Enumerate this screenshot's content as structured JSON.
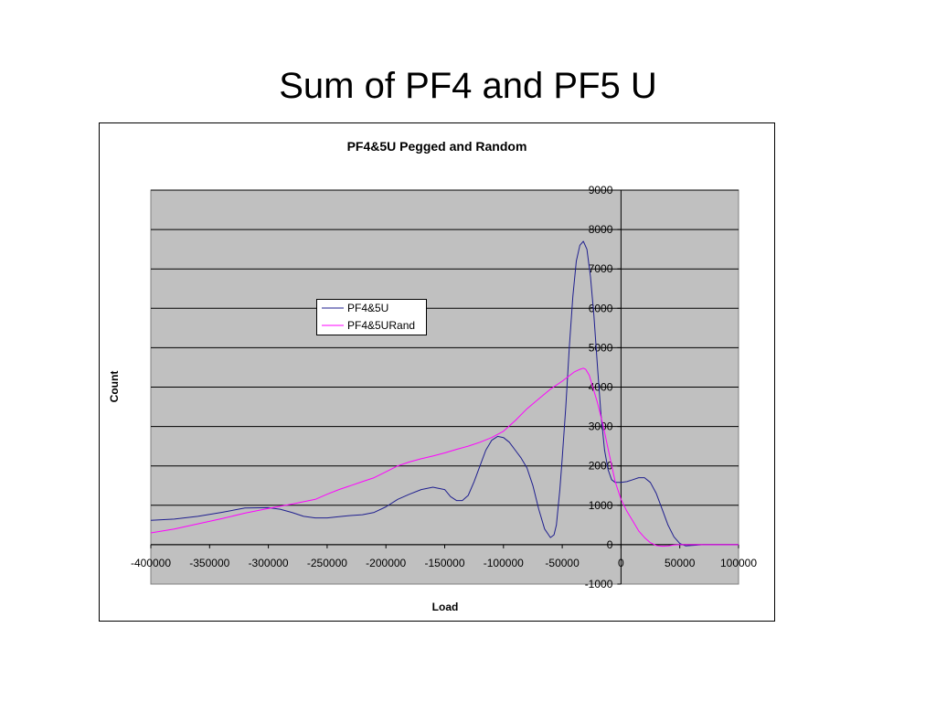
{
  "slide": {
    "title": "Sum of PF4 and PF5 U"
  },
  "chart_data": {
    "type": "line",
    "title": "PF4&5U Pegged and Random",
    "xlabel": "Load",
    "ylabel": "Count",
    "xlim": [
      -400000,
      100000
    ],
    "ylim": [
      -1000,
      9000
    ],
    "x_ticks": [
      -400000,
      -350000,
      -300000,
      -250000,
      -200000,
      -150000,
      -100000,
      -50000,
      0,
      50000,
      100000
    ],
    "y_ticks": [
      -1000,
      0,
      1000,
      2000,
      3000,
      4000,
      5000,
      6000,
      7000,
      8000,
      9000
    ],
    "grid": "horizontal",
    "legend": "upper-left-center",
    "series": [
      {
        "name": "PF4&5U",
        "color": "#1f1f8f",
        "points": [
          [
            -400000,
            620
          ],
          [
            -380000,
            650
          ],
          [
            -360000,
            720
          ],
          [
            -340000,
            820
          ],
          [
            -320000,
            930
          ],
          [
            -300000,
            940
          ],
          [
            -290000,
            900
          ],
          [
            -280000,
            820
          ],
          [
            -270000,
            720
          ],
          [
            -260000,
            680
          ],
          [
            -250000,
            680
          ],
          [
            -240000,
            710
          ],
          [
            -230000,
            740
          ],
          [
            -220000,
            760
          ],
          [
            -210000,
            820
          ],
          [
            -200000,
            960
          ],
          [
            -190000,
            1150
          ],
          [
            -180000,
            1280
          ],
          [
            -170000,
            1400
          ],
          [
            -160000,
            1460
          ],
          [
            -150000,
            1400
          ],
          [
            -145000,
            1220
          ],
          [
            -140000,
            1120
          ],
          [
            -135000,
            1120
          ],
          [
            -130000,
            1250
          ],
          [
            -125000,
            1600
          ],
          [
            -120000,
            2000
          ],
          [
            -115000,
            2400
          ],
          [
            -110000,
            2650
          ],
          [
            -105000,
            2750
          ],
          [
            -100000,
            2720
          ],
          [
            -95000,
            2600
          ],
          [
            -90000,
            2400
          ],
          [
            -85000,
            2200
          ],
          [
            -80000,
            1950
          ],
          [
            -75000,
            1500
          ],
          [
            -70000,
            900
          ],
          [
            -65000,
            400
          ],
          [
            -60000,
            180
          ],
          [
            -57000,
            250
          ],
          [
            -55000,
            500
          ],
          [
            -52000,
            1400
          ],
          [
            -50000,
            2200
          ],
          [
            -47000,
            3500
          ],
          [
            -44000,
            5000
          ],
          [
            -41000,
            6300
          ],
          [
            -38000,
            7200
          ],
          [
            -35000,
            7600
          ],
          [
            -32000,
            7700
          ],
          [
            -29000,
            7500
          ],
          [
            -26000,
            6800
          ],
          [
            -23000,
            5800
          ],
          [
            -20000,
            4500
          ],
          [
            -17000,
            3300
          ],
          [
            -14000,
            2400
          ],
          [
            -11000,
            1900
          ],
          [
            -8000,
            1650
          ],
          [
            -5000,
            1580
          ],
          [
            0,
            1580
          ],
          [
            5000,
            1600
          ],
          [
            10000,
            1650
          ],
          [
            15000,
            1700
          ],
          [
            20000,
            1700
          ],
          [
            25000,
            1580
          ],
          [
            30000,
            1300
          ],
          [
            35000,
            900
          ],
          [
            40000,
            500
          ],
          [
            45000,
            200
          ],
          [
            50000,
            30
          ],
          [
            55000,
            -30
          ],
          [
            60000,
            -20
          ],
          [
            70000,
            0
          ],
          [
            80000,
            0
          ],
          [
            90000,
            0
          ],
          [
            100000,
            0
          ]
        ]
      },
      {
        "name": "PF4&5URand",
        "color": "#ff00ff",
        "points": [
          [
            -400000,
            300
          ],
          [
            -380000,
            400
          ],
          [
            -360000,
            530
          ],
          [
            -340000,
            660
          ],
          [
            -320000,
            800
          ],
          [
            -300000,
            920
          ],
          [
            -280000,
            1030
          ],
          [
            -260000,
            1150
          ],
          [
            -250000,
            1280
          ],
          [
            -240000,
            1400
          ],
          [
            -230000,
            1500
          ],
          [
            -220000,
            1600
          ],
          [
            -210000,
            1700
          ],
          [
            -200000,
            1850
          ],
          [
            -190000,
            2000
          ],
          [
            -180000,
            2100
          ],
          [
            -170000,
            2180
          ],
          [
            -160000,
            2250
          ],
          [
            -150000,
            2330
          ],
          [
            -140000,
            2420
          ],
          [
            -130000,
            2500
          ],
          [
            -120000,
            2600
          ],
          [
            -110000,
            2720
          ],
          [
            -100000,
            2880
          ],
          [
            -90000,
            3150
          ],
          [
            -80000,
            3450
          ],
          [
            -70000,
            3700
          ],
          [
            -60000,
            3950
          ],
          [
            -50000,
            4150
          ],
          [
            -40000,
            4380
          ],
          [
            -35000,
            4450
          ],
          [
            -32000,
            4480
          ],
          [
            -30000,
            4450
          ],
          [
            -27000,
            4300
          ],
          [
            -24000,
            4000
          ],
          [
            -20000,
            3600
          ],
          [
            -15000,
            3000
          ],
          [
            -10000,
            2300
          ],
          [
            -5000,
            1600
          ],
          [
            0,
            1150
          ],
          [
            5000,
            850
          ],
          [
            10000,
            600
          ],
          [
            15000,
            350
          ],
          [
            20000,
            180
          ],
          [
            25000,
            50
          ],
          [
            30000,
            -20
          ],
          [
            35000,
            -40
          ],
          [
            40000,
            -30
          ],
          [
            45000,
            -10
          ],
          [
            50000,
            0
          ],
          [
            60000,
            0
          ],
          [
            80000,
            0
          ],
          [
            100000,
            0
          ]
        ]
      }
    ]
  }
}
